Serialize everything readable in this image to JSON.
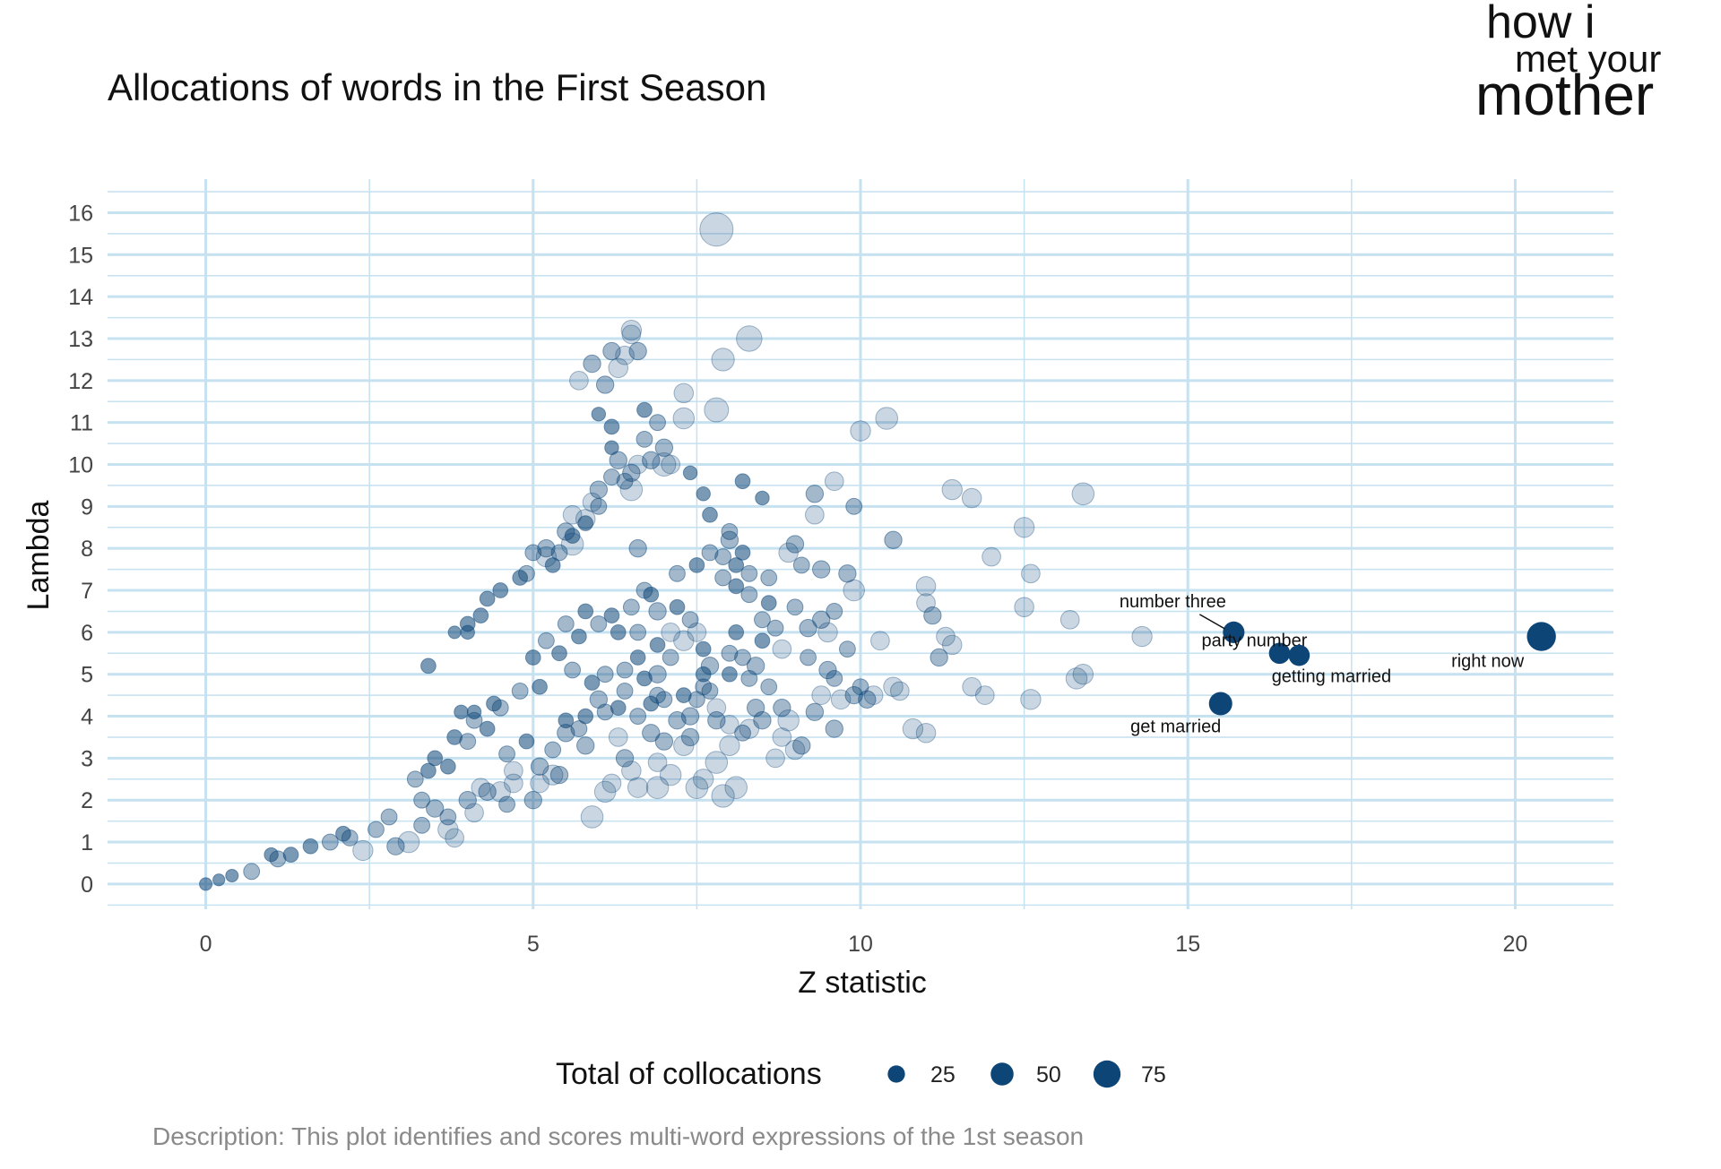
{
  "chart_data": {
    "type": "scatter",
    "title": "Allocations of words in the First Season",
    "xlabel": "Z statistic",
    "ylabel": "Lambda",
    "xlim": [
      -1.5,
      21.5
    ],
    "ylim": [
      -0.6,
      16.8
    ],
    "x_ticks": [
      0,
      5,
      10,
      15,
      20
    ],
    "y_ticks": [
      0,
      1,
      2,
      3,
      4,
      5,
      6,
      7,
      8,
      9,
      10,
      11,
      12,
      13,
      14,
      15,
      16
    ],
    "grid": true,
    "color": "#0d4577",
    "grid_color": "#c6e1f0",
    "legend": {
      "title": "Total of collocations",
      "position": "bottom",
      "sizes": [
        25,
        50,
        75
      ]
    },
    "labeled_points": [
      {
        "x": 20.4,
        "y": 5.9,
        "size": 80,
        "label": "right now"
      },
      {
        "x": 15.7,
        "y": 6.0,
        "size": 40,
        "label": "number three"
      },
      {
        "x": 16.4,
        "y": 5.5,
        "size": 38,
        "label": "party number"
      },
      {
        "x": 16.7,
        "y": 5.45,
        "size": 38,
        "label": "getting married"
      },
      {
        "x": 15.5,
        "y": 4.3,
        "size": 48,
        "label": "get married"
      }
    ],
    "points": [
      [
        7.8,
        15.6,
        75
      ],
      [
        8.3,
        13.0,
        40
      ],
      [
        7.9,
        12.5,
        30
      ],
      [
        7.8,
        11.3,
        35
      ],
      [
        7.3,
        11.1,
        25
      ],
      [
        7.3,
        11.7,
        20
      ],
      [
        10.4,
        11.1,
        28
      ],
      [
        10.0,
        10.8,
        22
      ],
      [
        7.0,
        10.0,
        32
      ],
      [
        6.5,
        9.4,
        28
      ],
      [
        8.2,
        9.6,
        10
      ],
      [
        8.5,
        9.2,
        8
      ],
      [
        11.4,
        9.4,
        22
      ],
      [
        11.7,
        9.2,
        20
      ],
      [
        13.4,
        9.3,
        28
      ],
      [
        12.5,
        8.5,
        22
      ],
      [
        12.0,
        7.8,
        18
      ],
      [
        12.6,
        7.4,
        18
      ],
      [
        12.5,
        6.6,
        20
      ],
      [
        13.2,
        6.3,
        18
      ],
      [
        14.3,
        5.9,
        22
      ],
      [
        13.3,
        4.9,
        25
      ],
      [
        13.4,
        5.0,
        22
      ],
      [
        12.6,
        4.4,
        22
      ],
      [
        11.9,
        4.5,
        18
      ],
      [
        11.7,
        4.7,
        18
      ],
      [
        10.8,
        3.7,
        22
      ],
      [
        11.0,
        3.6,
        20
      ],
      [
        10.5,
        4.7,
        20
      ],
      [
        10.6,
        4.6,
        18
      ],
      [
        9.8,
        7.4,
        15
      ],
      [
        9.4,
        7.5,
        15
      ],
      [
        9.1,
        7.6,
        12
      ],
      [
        9.9,
        7.0,
        25
      ],
      [
        9.6,
        9.6,
        18
      ],
      [
        9.9,
        9.0,
        12
      ],
      [
        10.5,
        8.2,
        15
      ],
      [
        11.0,
        7.1,
        20
      ],
      [
        11.0,
        6.7,
        18
      ],
      [
        11.1,
        6.4,
        15
      ],
      [
        11.3,
        5.9,
        18
      ],
      [
        11.4,
        5.7,
        20
      ],
      [
        11.2,
        5.4,
        15
      ],
      [
        10.3,
        5.8,
        18
      ],
      [
        9.5,
        6.0,
        20
      ],
      [
        9.4,
        6.3,
        15
      ],
      [
        9.0,
        6.6,
        12
      ],
      [
        9.2,
        6.1,
        15
      ],
      [
        9.4,
        4.5,
        18
      ],
      [
        9.7,
        4.4,
        20
      ],
      [
        9.9,
        4.5,
        15
      ],
      [
        10.2,
        4.5,
        18
      ],
      [
        9.0,
        3.2,
        20
      ],
      [
        8.8,
        3.5,
        18
      ],
      [
        8.9,
        3.9,
        25
      ],
      [
        8.5,
        3.9,
        15
      ],
      [
        8.0,
        3.8,
        18
      ],
      [
        8.3,
        3.7,
        20
      ],
      [
        8.0,
        3.3,
        22
      ],
      [
        7.8,
        2.9,
        28
      ],
      [
        7.9,
        2.1,
        30
      ],
      [
        8.1,
        2.3,
        28
      ],
      [
        7.5,
        2.3,
        28
      ],
      [
        7.3,
        3.3,
        22
      ],
      [
        7.1,
        2.6,
        25
      ],
      [
        6.9,
        2.3,
        28
      ],
      [
        6.6,
        2.3,
        22
      ],
      [
        6.1,
        2.2,
        25
      ],
      [
        6.2,
        2.4,
        18
      ],
      [
        5.9,
        1.6,
        28
      ],
      [
        6.5,
        2.7,
        20
      ],
      [
        7.6,
        2.5,
        22
      ],
      [
        3.1,
        1.0,
        25
      ],
      [
        2.4,
        0.8,
        22
      ],
      [
        3.7,
        1.3,
        22
      ],
      [
        4.1,
        1.7,
        18
      ],
      [
        2.9,
        0.9,
        15
      ],
      [
        4.2,
        2.3,
        18
      ],
      [
        4.5,
        2.2,
        22
      ],
      [
        4.7,
        2.4,
        18
      ],
      [
        5.3,
        2.6,
        22
      ],
      [
        5.1,
        2.4,
        18
      ],
      [
        6.4,
        4.6,
        12
      ],
      [
        6.0,
        4.4,
        15
      ],
      [
        6.8,
        3.6,
        15
      ],
      [
        7.0,
        3.4,
        15
      ],
      [
        7.2,
        3.9,
        15
      ],
      [
        6.5,
        9.8,
        15
      ],
      [
        6.3,
        10.1,
        15
      ],
      [
        6.6,
        10.0,
        18
      ],
      [
        6.8,
        10.1,
        15
      ],
      [
        7.1,
        10.0,
        18
      ],
      [
        7.0,
        10.4,
        15
      ],
      [
        6.7,
        10.6,
        12
      ],
      [
        6.9,
        11.0,
        12
      ],
      [
        6.7,
        11.3,
        10
      ],
      [
        5.6,
        8.8,
        18
      ],
      [
        5.5,
        8.4,
        15
      ],
      [
        5.2,
        7.8,
        22
      ],
      [
        5.6,
        8.1,
        28
      ],
      [
        5.8,
        8.7,
        20
      ],
      [
        5.9,
        9.1,
        18
      ],
      [
        6.0,
        9.4,
        15
      ],
      [
        6.2,
        9.7,
        12
      ],
      [
        4.0,
        6.2,
        10
      ],
      [
        4.0,
        6.0,
        8
      ],
      [
        4.2,
        6.4,
        10
      ],
      [
        3.8,
        6.0,
        6
      ],
      [
        5.2,
        8.0,
        15
      ],
      [
        5.0,
        7.9,
        12
      ],
      [
        6.6,
        8.0,
        15
      ],
      [
        6.7,
        7.0,
        12
      ],
      [
        6.9,
        6.5,
        15
      ],
      [
        7.1,
        6.0,
        18
      ],
      [
        7.3,
        5.8,
        22
      ],
      [
        7.5,
        6.0,
        18
      ],
      [
        7.9,
        7.8,
        12
      ],
      [
        8.0,
        8.2,
        15
      ],
      [
        8.1,
        7.6,
        10
      ],
      [
        8.3,
        7.4,
        12
      ],
      [
        8.6,
        7.3,
        12
      ],
      [
        8.9,
        7.9,
        20
      ],
      [
        9.0,
        8.1,
        15
      ],
      [
        9.3,
        8.8,
        18
      ],
      [
        9.3,
        9.3,
        15
      ],
      [
        9.6,
        6.5,
        12
      ],
      [
        9.8,
        5.6,
        12
      ],
      [
        9.5,
        5.1,
        15
      ],
      [
        9.2,
        5.4,
        12
      ],
      [
        8.8,
        5.6,
        18
      ],
      [
        8.5,
        6.3,
        12
      ],
      [
        8.1,
        6.0,
        10
      ],
      [
        8.0,
        5.5,
        12
      ],
      [
        7.7,
        5.2,
        15
      ],
      [
        7.8,
        4.2,
        18
      ],
      [
        7.4,
        4.0,
        15
      ],
      [
        6.3,
        3.5,
        18
      ],
      [
        5.8,
        3.3,
        15
      ],
      [
        5.4,
        2.6,
        15
      ],
      [
        5.0,
        2.0,
        15
      ],
      [
        4.6,
        1.9,
        12
      ],
      [
        3.8,
        1.1,
        18
      ],
      [
        3.5,
        1.8,
        15
      ],
      [
        3.3,
        2.0,
        12
      ],
      [
        2.8,
        1.6,
        12
      ],
      [
        2.1,
        1.2,
        10
      ],
      [
        1.6,
        0.9,
        10
      ],
      [
        1.0,
        0.7,
        8
      ],
      [
        0.7,
        0.3,
        12
      ],
      [
        0.4,
        0.2,
        6
      ],
      [
        0.2,
        0.1,
        5
      ],
      [
        0.0,
        0.0,
        6
      ],
      [
        8.8,
        4.2,
        15
      ],
      [
        9.6,
        4.9,
        12
      ],
      [
        10.1,
        4.4,
        15
      ],
      [
        10.0,
        4.7,
        12
      ],
      [
        9.6,
        3.7,
        15
      ],
      [
        8.6,
        4.7,
        12
      ],
      [
        8.3,
        4.9,
        12
      ],
      [
        8.4,
        5.2,
        15
      ],
      [
        7.6,
        4.7,
        12
      ],
      [
        7.6,
        5.0,
        10
      ],
      [
        6.9,
        4.5,
        12
      ],
      [
        6.7,
        4.9,
        10
      ],
      [
        6.4,
        5.1,
        12
      ],
      [
        6.6,
        5.4,
        10
      ],
      [
        6.1,
        5.0,
        12
      ],
      [
        5.9,
        4.8,
        10
      ],
      [
        5.6,
        5.1,
        12
      ],
      [
        5.4,
        5.5,
        10
      ],
      [
        5.2,
        5.8,
        12
      ],
      [
        5.7,
        5.9,
        10
      ],
      [
        6.0,
        6.2,
        12
      ],
      [
        6.2,
        6.4,
        10
      ],
      [
        6.5,
        6.6,
        12
      ],
      [
        6.8,
        6.9,
        10
      ],
      [
        7.2,
        7.4,
        12
      ],
      [
        7.5,
        7.6,
        10
      ],
      [
        7.7,
        7.9,
        12
      ],
      [
        7.2,
        6.6,
        10
      ],
      [
        7.4,
        6.3,
        12
      ],
      [
        7.6,
        5.6,
        10
      ],
      [
        7.1,
        5.4,
        12
      ],
      [
        6.9,
        5.7,
        10
      ],
      [
        6.6,
        6.0,
        12
      ],
      [
        6.3,
        6.0,
        10
      ],
      [
        5.8,
        6.5,
        10
      ],
      [
        5.5,
        6.2,
        12
      ],
      [
        5.0,
        5.4,
        10
      ],
      [
        4.8,
        4.6,
        12
      ],
      [
        5.1,
        4.7,
        10
      ],
      [
        4.5,
        4.2,
        12
      ],
      [
        4.3,
        3.7,
        10
      ],
      [
        4.0,
        3.4,
        12
      ],
      [
        3.8,
        3.5,
        10
      ],
      [
        4.1,
        3.9,
        12
      ],
      [
        4.4,
        4.3,
        10
      ],
      [
        4.1,
        4.1,
        8
      ],
      [
        3.9,
        4.1,
        8
      ],
      [
        3.4,
        5.2,
        10
      ],
      [
        3.4,
        2.7,
        10
      ],
      [
        3.2,
        2.5,
        12
      ],
      [
        3.5,
        3.0,
        10
      ],
      [
        3.7,
        2.8,
        10
      ],
      [
        4.6,
        3.1,
        12
      ],
      [
        4.9,
        3.4,
        10
      ],
      [
        5.3,
        3.2,
        12
      ],
      [
        5.5,
        3.9,
        10
      ],
      [
        5.7,
        3.7,
        12
      ],
      [
        5.8,
        4.0,
        10
      ],
      [
        6.1,
        4.1,
        12
      ],
      [
        6.3,
        4.2,
        10
      ],
      [
        6.6,
        4.0,
        12
      ],
      [
        6.8,
        4.3,
        10
      ],
      [
        7.0,
        4.4,
        12
      ],
      [
        7.3,
        4.5,
        10
      ],
      [
        7.7,
        4.6,
        12
      ],
      [
        8.0,
        5.0,
        10
      ],
      [
        8.2,
        5.4,
        12
      ],
      [
        8.5,
        5.8,
        10
      ],
      [
        8.7,
        6.1,
        12
      ],
      [
        8.6,
        6.7,
        10
      ],
      [
        8.3,
        6.9,
        12
      ],
      [
        8.1,
        7.1,
        10
      ],
      [
        7.9,
        7.3,
        12
      ],
      [
        8.2,
        7.9,
        10
      ],
      [
        8.0,
        8.4,
        12
      ],
      [
        7.7,
        8.8,
        10
      ],
      [
        7.6,
        9.3,
        8
      ],
      [
        7.4,
        9.8,
        8
      ],
      [
        6.2,
        10.9,
        10
      ],
      [
        6.0,
        11.2,
        8
      ],
      [
        6.2,
        10.4,
        8
      ],
      [
        6.4,
        12.6,
        18
      ],
      [
        6.3,
        12.3,
        20
      ],
      [
        6.5,
        13.2,
        22
      ],
      [
        6.1,
        11.9,
        15
      ],
      [
        5.7,
        12.0,
        18
      ],
      [
        5.9,
        12.4,
        15
      ],
      [
        6.2,
        12.7,
        15
      ],
      [
        6.5,
        13.1,
        18
      ],
      [
        6.6,
        12.7,
        15
      ],
      [
        5.3,
        7.6,
        10
      ],
      [
        4.8,
        7.3,
        10
      ],
      [
        4.5,
        7.0,
        10
      ],
      [
        4.3,
        6.8,
        10
      ],
      [
        4.9,
        7.4,
        12
      ],
      [
        5.4,
        7.9,
        12
      ],
      [
        5.6,
        8.3,
        10
      ],
      [
        5.8,
        8.6,
        10
      ],
      [
        6.0,
        9.0,
        12
      ],
      [
        6.4,
        9.6,
        12
      ],
      [
        6.9,
        5.0,
        15
      ],
      [
        7.5,
        4.4,
        12
      ],
      [
        7.8,
        3.9,
        15
      ],
      [
        8.2,
        3.6,
        12
      ],
      [
        8.4,
        4.2,
        15
      ],
      [
        8.7,
        3.0,
        18
      ],
      [
        9.1,
        3.3,
        15
      ],
      [
        9.3,
        4.1,
        15
      ],
      [
        6.4,
        3.0,
        15
      ],
      [
        6.9,
        2.9,
        18
      ],
      [
        7.4,
        3.5,
        15
      ],
      [
        5.5,
        3.6,
        15
      ],
      [
        5.1,
        2.8,
        15
      ],
      [
        4.7,
        2.7,
        18
      ],
      [
        4.3,
        2.2,
        15
      ],
      [
        4.0,
        2.0,
        15
      ],
      [
        3.7,
        1.6,
        12
      ],
      [
        3.3,
        1.4,
        12
      ],
      [
        2.6,
        1.3,
        12
      ],
      [
        2.2,
        1.1,
        12
      ],
      [
        1.9,
        1.0,
        12
      ],
      [
        1.3,
        0.7,
        10
      ],
      [
        1.1,
        0.6,
        12
      ]
    ]
  },
  "caption": "Description: This plot identifies and scores multi-word expressions of the 1st season",
  "logo": {
    "line1": "how i",
    "line2": "met your",
    "line3": "mother"
  }
}
